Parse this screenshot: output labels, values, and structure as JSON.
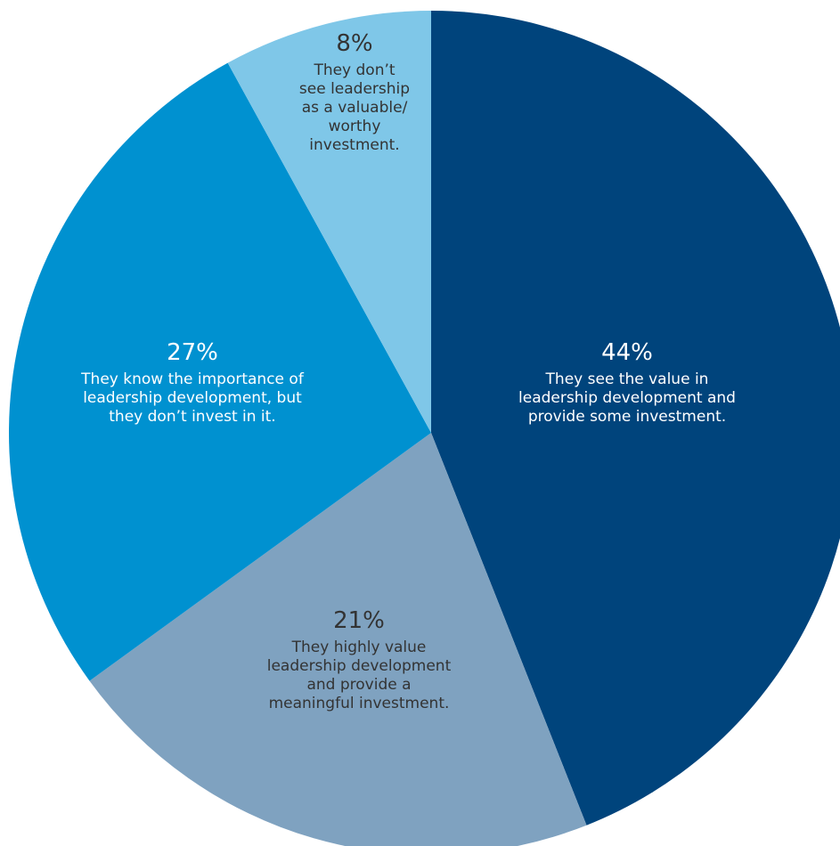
{
  "chart_data": {
    "type": "pie",
    "title": "",
    "slices": [
      {
        "label": "They see the value in leadership development and provide some investment.",
        "label_lines": [
          "They see the value in",
          "leadership development and",
          "provide some investment."
        ],
        "value": 44,
        "value_label": "44%",
        "color": "#00447c",
        "text_color": "#ffffff"
      },
      {
        "label": "They highly value leadership development and provide a meaningful investment.",
        "label_lines": [
          "They highly value",
          "leadership development",
          "and provide a",
          "meaningful investment."
        ],
        "value": 21,
        "value_label": "21%",
        "color": "#7fa2c0",
        "text_color": "#333333"
      },
      {
        "label": "They know the importance of leadership development, but they don’t invest in it.",
        "label_lines": [
          "They know the importance of",
          "leadership development, but",
          "they don’t invest in it."
        ],
        "value": 27,
        "value_label": "27%",
        "color": "#0091d0",
        "text_color": "#ffffff"
      },
      {
        "label": "They don’t see leadership as a valuable/ worthy investment.",
        "label_lines": [
          "They don’t",
          "see leadership",
          "as a valuable/",
          "worthy",
          "investment."
        ],
        "value": 8,
        "value_label": "8%",
        "color": "#7fc7e8",
        "text_color": "#333333"
      }
    ],
    "start_angle": "12 o'clock",
    "direction": "clockwise",
    "legend": "none"
  }
}
